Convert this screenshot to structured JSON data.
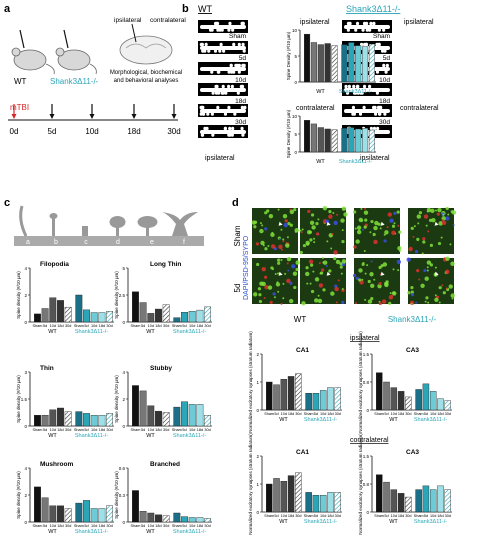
{
  "panel_labels": {
    "a": "a",
    "b": "b",
    "c": "c",
    "d": "d"
  },
  "colors": {
    "wt": "#555555",
    "shank": "#2aa6b8",
    "mtbi": "#d62728",
    "ctrl": "#111111"
  },
  "panel_a": {
    "group_wt": "WT",
    "group_shank": "Shank3Δ11-/-",
    "ipsilateral": "ipsilateral",
    "contralateral": "contralateral",
    "analyses": "Morphological, biochemical\nand behavioral analyses",
    "mtbi": "mTBI",
    "timepoints": [
      "0d",
      "5d",
      "10d",
      "18d",
      "30d"
    ]
  },
  "panel_b": {
    "title_wt": "WT",
    "title_shank": "Shank3Δ11-/-",
    "row_labels": [
      "Sham",
      "5d",
      "10d",
      "18d",
      "30d"
    ],
    "footer_label": "ipsilateral",
    "plots": [
      {
        "title": "ipsilateral",
        "ylabel": "Spine Density (#/10 μm)"
      },
      {
        "title": "contralateral",
        "ylabel": "Spine Density (#/10 μm)"
      }
    ]
  },
  "panel_c": {
    "schematic_letters": [
      "a",
      "b",
      "c",
      "d",
      "e",
      "f"
    ],
    "ylabel": "Spine density (#/10 μm)",
    "group_wt": "WT",
    "group_shank": "Shank3Δ11-/-",
    "categories": [
      "Sham",
      "5d",
      "10d",
      "18d",
      "30d"
    ]
  },
  "panel_d": {
    "row_labels": [
      "Sham",
      "5d"
    ],
    "stain_label": "DAPI/PSD-95/SYPO",
    "group_wt": "WT",
    "group_shank": "Shank3Δ11-/-",
    "ipsilateral": "ipsilateral",
    "contralateral": "contralateral",
    "ylabel": "Normalized excitatory synapses (stratum radiatum)"
  },
  "chart_data": [
    {
      "type": "bar",
      "title": "ipsilateral",
      "panel": "b",
      "categories": [
        "Sham",
        "5d",
        "10d",
        "18d",
        "30d"
      ],
      "ylim": [
        0,
        10
      ],
      "series": [
        {
          "name": "WT",
          "values": [
            9.2,
            7.6,
            7.2,
            7.4,
            7.0
          ]
        },
        {
          "name": "Shank3Δ11-/-",
          "values": [
            7.2,
            7.6,
            7.0,
            6.8,
            7.3
          ]
        }
      ]
    },
    {
      "type": "bar",
      "title": "contralateral",
      "panel": "b",
      "categories": [
        "Sham",
        "5d",
        "10d",
        "18d",
        "30d"
      ],
      "ylim": [
        0,
        10
      ],
      "series": [
        {
          "name": "WT",
          "values": [
            8.8,
            7.8,
            6.8,
            6.4,
            6.2
          ]
        },
        {
          "name": "Shank3Δ11-/-",
          "values": [
            6.6,
            6.8,
            6.4,
            6.6,
            6.1
          ]
        }
      ]
    },
    {
      "type": "bar",
      "title": "Filopodia",
      "panel": "c",
      "categories": [
        "Sham",
        "5d",
        "10d",
        "18d",
        "30d"
      ],
      "ylim": [
        0,
        4
      ],
      "series": [
        {
          "name": "WT",
          "values": [
            0.6,
            1.0,
            1.8,
            1.6,
            1.1
          ]
        },
        {
          "name": "Shank3Δ11-/-",
          "values": [
            2.0,
            0.9,
            0.7,
            0.7,
            0.8
          ]
        }
      ]
    },
    {
      "type": "bar",
      "title": "Long Thin",
      "panel": "c",
      "categories": [
        "Sham",
        "5d",
        "10d",
        "18d",
        "30d"
      ],
      "ylim": [
        0,
        5
      ],
      "series": [
        {
          "name": "WT",
          "values": [
            2.8,
            1.8,
            0.8,
            1.2,
            1.6
          ]
        },
        {
          "name": "Shank3Δ11-/-",
          "values": [
            0.4,
            0.9,
            1.0,
            1.1,
            1.4
          ]
        }
      ]
    },
    {
      "type": "bar",
      "title": "Thin",
      "panel": "c",
      "categories": [
        "Sham",
        "5d",
        "10d",
        "18d",
        "30d"
      ],
      "ylim": [
        0,
        3
      ],
      "series": [
        {
          "name": "WT",
          "values": [
            0.6,
            0.6,
            0.9,
            1.0,
            0.8
          ]
        },
        {
          "name": "Shank3Δ11-/-",
          "values": [
            0.8,
            0.7,
            0.6,
            0.6,
            0.7
          ]
        }
      ]
    },
    {
      "type": "bar",
      "title": "Stubby",
      "panel": "c",
      "categories": [
        "Sham",
        "5d",
        "10d",
        "18d",
        "30d"
      ],
      "ylim": [
        0,
        4
      ],
      "series": [
        {
          "name": "WT",
          "values": [
            3.0,
            2.6,
            1.5,
            1.1,
            1.0
          ]
        },
        {
          "name": "Shank3Δ11-/-",
          "values": [
            1.4,
            1.8,
            1.6,
            1.6,
            0.8
          ]
        }
      ]
    },
    {
      "type": "bar",
      "title": "Mushroom",
      "panel": "c",
      "categories": [
        "Sham",
        "5d",
        "10d",
        "18d",
        "30d"
      ],
      "ylim": [
        0,
        4
      ],
      "series": [
        {
          "name": "WT",
          "values": [
            2.6,
            1.8,
            1.2,
            1.2,
            1.0
          ]
        },
        {
          "name": "Shank3Δ11-/-",
          "values": [
            1.4,
            1.6,
            1.0,
            1.0,
            1.2
          ]
        }
      ]
    },
    {
      "type": "bar",
      "title": "Branched",
      "panel": "c",
      "categories": [
        "Sham",
        "5d",
        "10d",
        "18d",
        "30d"
      ],
      "ylim": [
        0,
        0.6
      ],
      "series": [
        {
          "name": "WT",
          "values": [
            0.35,
            0.12,
            0.1,
            0.08,
            0.07
          ]
        },
        {
          "name": "Shank3Δ11-/-",
          "values": [
            0.1,
            0.06,
            0.05,
            0.05,
            0.04
          ]
        }
      ]
    },
    {
      "type": "bar",
      "title": "CA1",
      "panel": "d",
      "categories": [
        "Sham",
        "5d",
        "10d",
        "18d",
        "30d"
      ],
      "ylim": [
        0,
        2
      ],
      "series": [
        {
          "name": "WT",
          "values": [
            1.0,
            0.9,
            1.1,
            1.2,
            1.3
          ]
        },
        {
          "name": "Shank3Δ11-/-",
          "values": [
            0.6,
            0.6,
            0.7,
            0.8,
            0.8
          ]
        }
      ]
    },
    {
      "type": "bar",
      "title": "CA3",
      "panel": "d",
      "categories": [
        "Sham",
        "5d",
        "10d",
        "18d",
        "30d"
      ],
      "ylim": [
        0,
        1.5
      ],
      "series": [
        {
          "name": "WT",
          "values": [
            1.0,
            0.75,
            0.6,
            0.5,
            0.35
          ]
        },
        {
          "name": "Shank3Δ11-/-",
          "values": [
            0.55,
            0.7,
            0.5,
            0.3,
            0.25
          ]
        }
      ]
    },
    {
      "type": "bar",
      "title": "CA1",
      "panel": "d",
      "categories": [
        "Sham",
        "5d",
        "10d",
        "18d",
        "30d"
      ],
      "ylim": [
        0,
        2
      ],
      "series": [
        {
          "name": "WT",
          "values": [
            1.0,
            1.2,
            1.1,
            1.3,
            1.4
          ]
        },
        {
          "name": "Shank3Δ11-/-",
          "values": [
            0.7,
            0.6,
            0.6,
            0.7,
            0.7
          ]
        }
      ]
    },
    {
      "type": "bar",
      "title": "CA3",
      "panel": "d",
      "categories": [
        "Sham",
        "5d",
        "10d",
        "18d",
        "30d"
      ],
      "ylim": [
        0,
        1.5
      ],
      "series": [
        {
          "name": "WT",
          "values": [
            1.0,
            0.8,
            0.6,
            0.5,
            0.4
          ]
        },
        {
          "name": "Shank3Δ11-/-",
          "values": [
            0.6,
            0.7,
            0.6,
            0.7,
            0.6
          ]
        }
      ]
    }
  ]
}
